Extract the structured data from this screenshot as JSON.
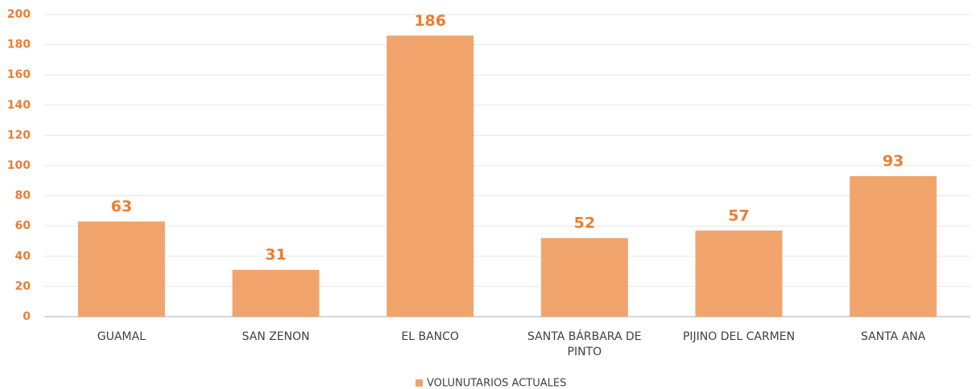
{
  "chart_data": {
    "type": "bar",
    "categories": [
      "GUAMAL",
      "SAN ZENON",
      "EL BANCO",
      "SANTA BÁRBARA DE PINTO",
      "PIJINO DEL CARMEN",
      "SANTA ANA"
    ],
    "series": [
      {
        "name": "VOLUNUTARIOS ACTUALES",
        "color": "#f0a46c",
        "values": [
          63,
          31,
          186,
          52,
          57,
          93
        ]
      }
    ],
    "ylim": [
      0,
      200
    ],
    "yticks": [
      0,
      20,
      40,
      60,
      80,
      100,
      120,
      140,
      160,
      180,
      200
    ],
    "grid": true,
    "data_labels": true,
    "legend": "bottom"
  }
}
